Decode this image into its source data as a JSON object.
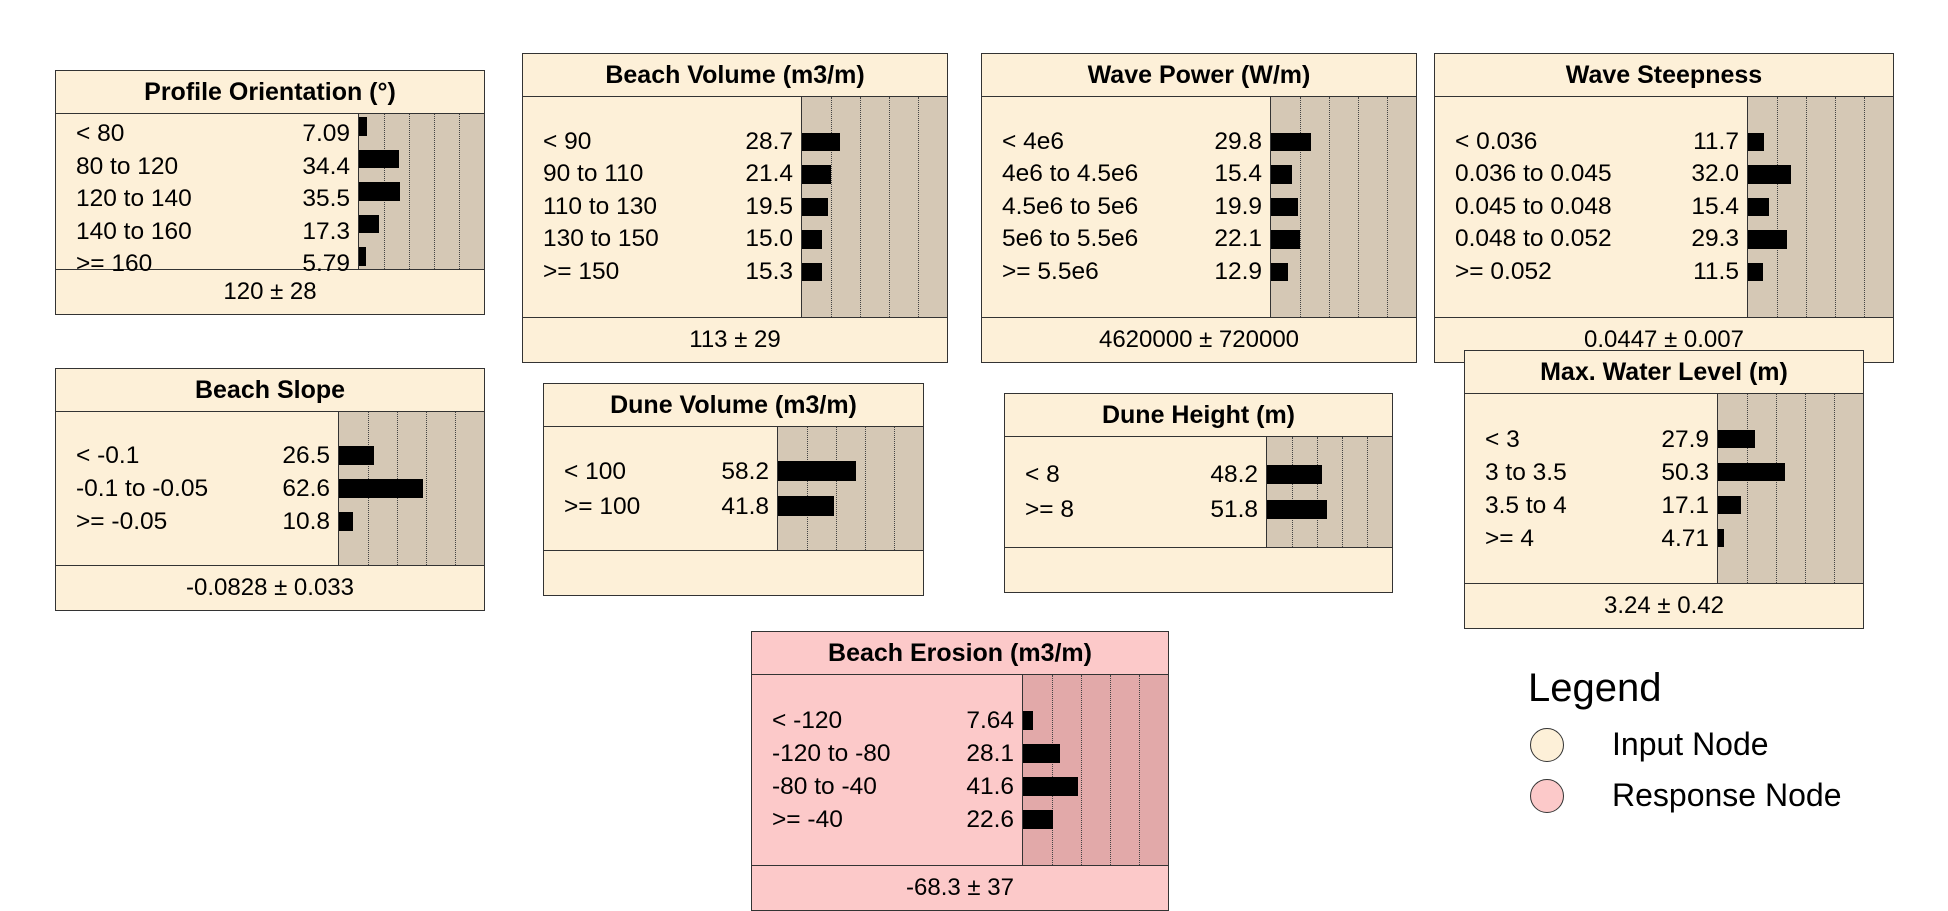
{
  "nodes": [
    {
      "id": "profile-orientation",
      "title": "Profile Orientation (°)",
      "type": "input",
      "summary": "120 ± 28",
      "states": [
        {
          "label": "< 80",
          "value": "7.09"
        },
        {
          "label": "80 to 120",
          "value": "34.4"
        },
        {
          "label": "120 to 140",
          "value": "35.5"
        },
        {
          "label": "140 to 160",
          "value": "17.3"
        },
        {
          "label": ">= 160",
          "value": "5.79"
        }
      ]
    },
    {
      "id": "beach-volume",
      "title": "Beach Volume (m3/m)",
      "type": "input",
      "summary": "113 ± 29",
      "states": [
        {
          "label": "< 90",
          "value": "28.7"
        },
        {
          "label": "90 to 110",
          "value": "21.4"
        },
        {
          "label": "110 to 130",
          "value": "19.5"
        },
        {
          "label": "130 to 150",
          "value": "15.0"
        },
        {
          "label": ">= 150",
          "value": "15.3"
        }
      ]
    },
    {
      "id": "wave-power",
      "title": "Wave Power (W/m)",
      "type": "input",
      "summary": "4620000 ± 720000",
      "states": [
        {
          "label": "< 4e6",
          "value": "29.8"
        },
        {
          "label": "4e6 to 4.5e6",
          "value": "15.4"
        },
        {
          "label": "4.5e6 to 5e6",
          "value": "19.9"
        },
        {
          "label": "5e6 to 5.5e6",
          "value": "22.1"
        },
        {
          "label": ">= 5.5e6",
          "value": "12.9"
        }
      ]
    },
    {
      "id": "wave-steepness",
      "title": "Wave Steepness",
      "type": "input",
      "summary": "0.0447 ± 0.007",
      "states": [
        {
          "label": "< 0.036",
          "value": "11.7"
        },
        {
          "label": "0.036 to 0.045",
          "value": "32.0"
        },
        {
          "label": "0.045 to 0.048",
          "value": "15.4"
        },
        {
          "label": "0.048 to 0.052",
          "value": "29.3"
        },
        {
          "label": ">= 0.052",
          "value": "11.5"
        }
      ]
    },
    {
      "id": "beach-slope",
      "title": "Beach Slope",
      "type": "input",
      "summary": "-0.0828 ± 0.033",
      "states": [
        {
          "label": "< -0.1",
          "value": "26.5"
        },
        {
          "label": "-0.1 to -0.05",
          "value": "62.6"
        },
        {
          "label": ">= -0.05",
          "value": "10.8"
        }
      ]
    },
    {
      "id": "dune-volume",
      "title": "Dune Volume (m3/m)",
      "type": "input",
      "summary": "",
      "states": [
        {
          "label": "< 100",
          "value": "58.2"
        },
        {
          "label": ">= 100",
          "value": "41.8"
        }
      ]
    },
    {
      "id": "dune-height",
      "title": "Dune Height (m)",
      "type": "input",
      "summary": "",
      "states": [
        {
          "label": "< 8",
          "value": "48.2"
        },
        {
          "label": ">= 8",
          "value": "51.8"
        }
      ]
    },
    {
      "id": "max-water-level",
      "title": "Max. Water Level (m)",
      "type": "input",
      "summary": "3.24 ± 0.42",
      "states": [
        {
          "label": "< 3",
          "value": "27.9"
        },
        {
          "label": "3 to 3.5",
          "value": "50.3"
        },
        {
          "label": "3.5 to 4",
          "value": "17.1"
        },
        {
          "label": ">= 4",
          "value": "4.71"
        }
      ]
    },
    {
      "id": "beach-erosion",
      "title": "Beach Erosion (m3/m)",
      "type": "response",
      "summary": "-68.3 ± 37",
      "states": [
        {
          "label": "< -120",
          "value": "7.64"
        },
        {
          "label": "-120 to -80",
          "value": "28.1"
        },
        {
          "label": "-80 to -40",
          "value": "41.6"
        },
        {
          "label": ">= -40",
          "value": "22.6"
        }
      ]
    }
  ],
  "legend": {
    "title": "Legend",
    "items": [
      {
        "label": "Input Node",
        "color": "#fdf0d8"
      },
      {
        "label": "Response Node",
        "color": "#fcc9c9"
      }
    ]
  },
  "colors": {
    "input": "#fdf0d8",
    "response": "#fcc9c9",
    "bar": "#000000"
  }
}
